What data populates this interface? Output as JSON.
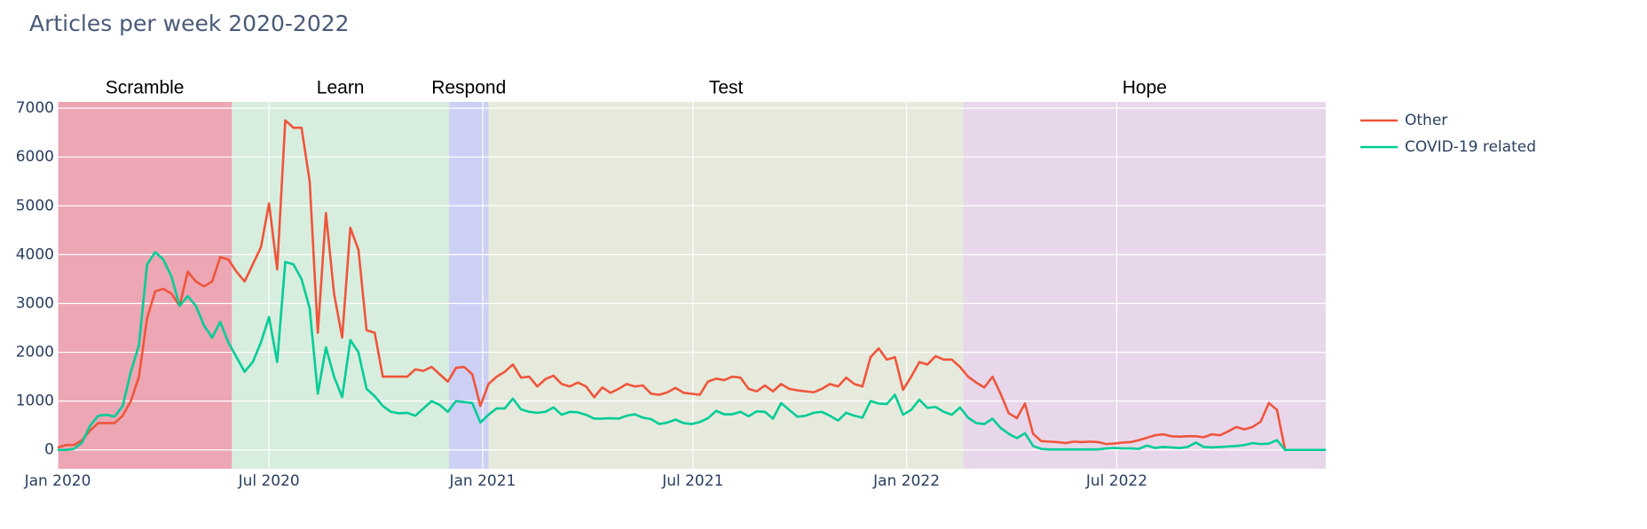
{
  "chart_data": {
    "type": "line",
    "title": "Articles per week 2020-2022",
    "x": [
      "2020-01-01",
      "2020-01-08",
      "2020-01-15",
      "2020-01-22",
      "2020-01-29",
      "2020-02-05",
      "2020-02-12",
      "2020-02-19",
      "2020-02-26",
      "2020-03-04",
      "2020-03-11",
      "2020-03-18",
      "2020-03-25",
      "2020-04-01",
      "2020-04-08",
      "2020-04-15",
      "2020-04-22",
      "2020-04-29",
      "2020-05-06",
      "2020-05-13",
      "2020-05-20",
      "2020-05-27",
      "2020-06-03",
      "2020-06-10",
      "2020-06-17",
      "2020-06-24",
      "2020-07-01",
      "2020-07-08",
      "2020-07-15",
      "2020-07-22",
      "2020-07-29",
      "2020-08-05",
      "2020-08-12",
      "2020-08-19",
      "2020-08-26",
      "2020-09-02",
      "2020-09-09",
      "2020-09-16",
      "2020-09-23",
      "2020-09-30",
      "2020-10-07",
      "2020-10-14",
      "2020-10-21",
      "2020-10-28",
      "2020-11-04",
      "2020-11-11",
      "2020-11-18",
      "2020-11-25",
      "2020-12-02",
      "2020-12-09",
      "2020-12-16",
      "2020-12-23",
      "2020-12-30",
      "2021-01-06",
      "2021-01-13",
      "2021-01-20",
      "2021-01-27",
      "2021-02-03",
      "2021-02-10",
      "2021-02-17",
      "2021-02-24",
      "2021-03-03",
      "2021-03-10",
      "2021-03-17",
      "2021-03-24",
      "2021-03-31",
      "2021-04-07",
      "2021-04-14",
      "2021-04-21",
      "2021-04-28",
      "2021-05-05",
      "2021-05-12",
      "2021-05-19",
      "2021-05-26",
      "2021-06-02",
      "2021-06-09",
      "2021-06-16",
      "2021-06-23",
      "2021-06-30",
      "2021-07-07",
      "2021-07-14",
      "2021-07-21",
      "2021-07-28",
      "2021-08-04",
      "2021-08-11",
      "2021-08-18",
      "2021-08-25",
      "2021-09-01",
      "2021-09-08",
      "2021-09-15",
      "2021-09-22",
      "2021-09-29",
      "2021-10-06",
      "2021-10-13",
      "2021-10-20",
      "2021-10-27",
      "2021-11-03",
      "2021-11-10",
      "2021-11-17",
      "2021-11-24",
      "2021-12-01",
      "2021-12-08",
      "2021-12-15",
      "2021-12-22",
      "2021-12-29",
      "2022-01-05",
      "2022-01-12",
      "2022-01-19",
      "2022-01-26",
      "2022-02-02",
      "2022-02-09",
      "2022-02-16",
      "2022-02-23",
      "2022-03-02",
      "2022-03-09",
      "2022-03-16",
      "2022-03-23",
      "2022-03-30",
      "2022-04-06",
      "2022-04-13",
      "2022-04-20",
      "2022-04-27",
      "2022-05-04",
      "2022-05-11",
      "2022-05-18",
      "2022-05-25",
      "2022-06-01",
      "2022-06-08",
      "2022-06-15",
      "2022-06-22",
      "2022-06-29",
      "2022-07-06",
      "2022-07-13",
      "2022-07-20",
      "2022-07-27",
      "2022-08-03",
      "2022-08-10",
      "2022-08-17",
      "2022-08-24",
      "2022-08-31",
      "2022-09-07",
      "2022-09-14",
      "2022-09-21",
      "2022-09-28",
      "2022-10-05",
      "2022-10-12",
      "2022-10-19",
      "2022-10-26",
      "2022-11-02",
      "2022-11-09",
      "2022-11-16",
      "2022-11-23",
      "2022-11-30",
      "2022-12-07",
      "2022-12-14",
      "2022-12-21",
      "2022-12-28"
    ],
    "series": [
      {
        "name": "Other",
        "color": "#ef553b",
        "values": [
          50,
          100,
          100,
          200,
          400,
          550,
          550,
          550,
          700,
          1000,
          1500,
          2700,
          3250,
          3300,
          3200,
          2950,
          3650,
          3450,
          3350,
          3450,
          3950,
          3900,
          3650,
          3450,
          3800,
          4150,
          5050,
          3700,
          6750,
          6600,
          6600,
          5500,
          2400,
          4850,
          3200,
          2300,
          4550,
          4100,
          2450,
          2400,
          1500,
          1500,
          1500,
          1500,
          1650,
          1620,
          1700,
          1550,
          1400,
          1680,
          1700,
          1550,
          900,
          1350,
          1500,
          1600,
          1750,
          1480,
          1500,
          1300,
          1450,
          1520,
          1350,
          1300,
          1380,
          1300,
          1080,
          1280,
          1170,
          1250,
          1350,
          1300,
          1320,
          1150,
          1130,
          1180,
          1270,
          1170,
          1150,
          1130,
          1400,
          1460,
          1430,
          1500,
          1480,
          1250,
          1200,
          1320,
          1200,
          1350,
          1250,
          1220,
          1200,
          1180,
          1250,
          1350,
          1300,
          1480,
          1350,
          1300,
          1900,
          2080,
          1850,
          1900,
          1230,
          1500,
          1800,
          1750,
          1920,
          1850,
          1850,
          1700,
          1500,
          1380,
          1280,
          1500,
          1150,
          750,
          650,
          950,
          330,
          180,
          170,
          160,
          140,
          170,
          160,
          170,
          160,
          120,
          130,
          150,
          160,
          200,
          250,
          300,
          320,
          280,
          270,
          280,
          280,
          260,
          320,
          300,
          380,
          470,
          420,
          470,
          580,
          960,
          820,
          0,
          0,
          0,
          0,
          0,
          0
        ]
      },
      {
        "name": "COVID-19 related",
        "color": "#00cc96",
        "values": [
          0,
          0,
          20,
          150,
          500,
          700,
          720,
          680,
          900,
          1600,
          2150,
          3800,
          4050,
          3900,
          3550,
          2950,
          3150,
          2950,
          2550,
          2300,
          2620,
          2200,
          1900,
          1600,
          1800,
          2200,
          2720,
          1800,
          3850,
          3800,
          3500,
          2900,
          1150,
          2100,
          1500,
          1080,
          2250,
          2000,
          1250,
          1100,
          900,
          780,
          750,
          760,
          700,
          850,
          1000,
          920,
          780,
          1000,
          980,
          960,
          560,
          720,
          850,
          850,
          1050,
          830,
          780,
          760,
          780,
          870,
          720,
          780,
          770,
          720,
          640,
          640,
          650,
          640,
          700,
          730,
          660,
          630,
          530,
          560,
          620,
          550,
          530,
          570,
          650,
          800,
          730,
          730,
          780,
          690,
          790,
          780,
          640,
          960,
          820,
          680,
          700,
          760,
          780,
          700,
          600,
          760,
          700,
          660,
          1000,
          950,
          940,
          1130,
          720,
          820,
          1030,
          860,
          880,
          780,
          720,
          870,
          660,
          550,
          530,
          640,
          450,
          330,
          240,
          340,
          80,
          20,
          10,
          10,
          10,
          10,
          10,
          10,
          10,
          30,
          40,
          30,
          30,
          20,
          90,
          40,
          60,
          50,
          40,
          60,
          150,
          60,
          50,
          60,
          70,
          80,
          100,
          140,
          120,
          130,
          200,
          0,
          0,
          0,
          0,
          0,
          0
        ]
      }
    ],
    "phases": [
      {
        "name": "Scramble",
        "start": "2020-01-01",
        "end": "2020-05-30",
        "color": "#eca6b4"
      },
      {
        "name": "Learn",
        "start": "2020-05-30",
        "end": "2020-12-03",
        "color": "#d7edde"
      },
      {
        "name": "Respond",
        "start": "2020-12-03",
        "end": "2021-01-06",
        "color": "#cdd0f5"
      },
      {
        "name": "Test",
        "start": "2021-01-06",
        "end": "2022-02-19",
        "color": "#e6eadc"
      },
      {
        "name": "Hope",
        "start": "2022-02-19",
        "end": "2022-12-28",
        "color": "#e8d7ea"
      }
    ],
    "xlim": [
      "2020-01-01",
      "2022-12-28"
    ],
    "xticks": [
      {
        "value": "2020-01-01",
        "label": "Jan 2020"
      },
      {
        "value": "2020-07-01",
        "label": "Jul 2020"
      },
      {
        "value": "2021-01-01",
        "label": "Jan 2021"
      },
      {
        "value": "2021-07-01",
        "label": "Jul 2021"
      },
      {
        "value": "2022-01-01",
        "label": "Jan 2022"
      },
      {
        "value": "2022-07-01",
        "label": "Jul 2022"
      }
    ],
    "ylim": [
      -386,
      7129
    ],
    "yticks": [
      0,
      1000,
      2000,
      3000,
      4000,
      5000,
      6000,
      7000
    ],
    "grid": true,
    "legend": "right"
  }
}
